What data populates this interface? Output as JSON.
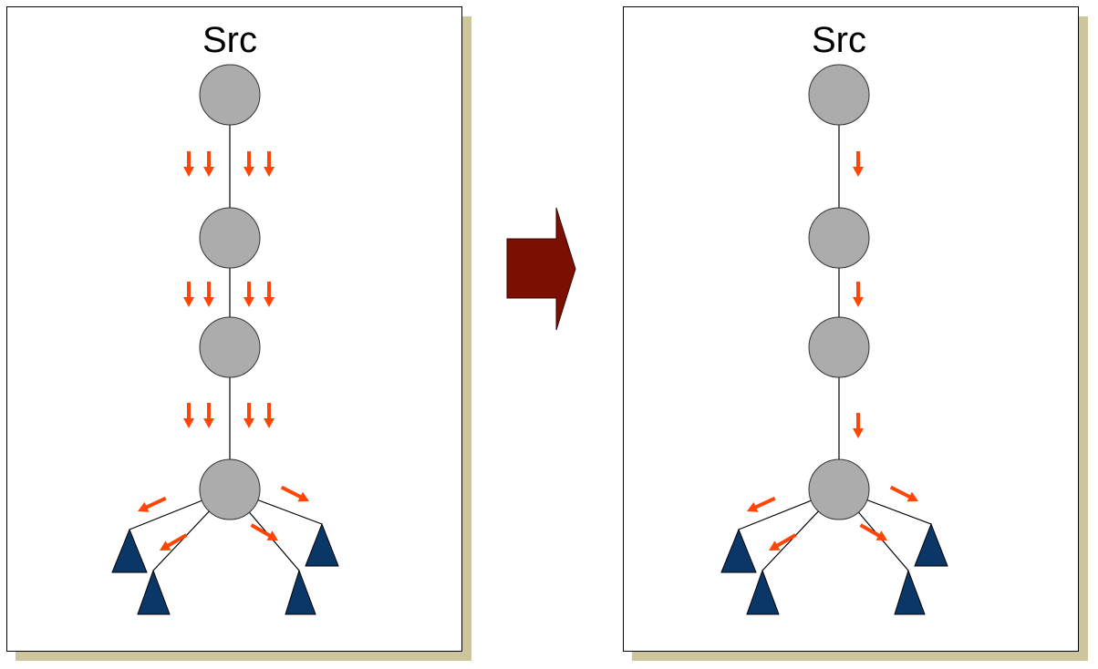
{
  "panels": [
    {
      "id": "before",
      "label": "Src"
    },
    {
      "id": "after",
      "label": "Src"
    }
  ],
  "colors": {
    "node": "#acacac",
    "edge": "#000000",
    "flow_arrow": "#ff4508",
    "receiver": "#0b3768",
    "transition_arrow": "#7a0f02",
    "shadow": "#cdc69d"
  },
  "icons": {
    "node": "circle-node-icon",
    "receiver": "triangle-receiver-icon",
    "flow": "down-arrow-icon",
    "transition": "right-block-arrow-icon"
  }
}
